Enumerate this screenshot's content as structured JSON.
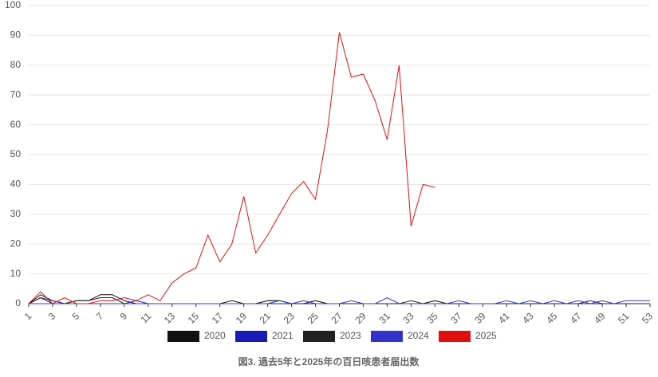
{
  "chart_data": {
    "type": "line",
    "title": "図3. 過去5年と2025年の百日咳患者届出数",
    "x": [
      1,
      2,
      3,
      4,
      5,
      6,
      7,
      8,
      9,
      10,
      11,
      12,
      13,
      14,
      15,
      16,
      17,
      18,
      19,
      20,
      21,
      22,
      23,
      24,
      25,
      26,
      27,
      28,
      29,
      30,
      31,
      32,
      33,
      34,
      35,
      36,
      37,
      38,
      39,
      40,
      41,
      42,
      43,
      44,
      45,
      46,
      47,
      48,
      49,
      50,
      51,
      52,
      53
    ],
    "xlim": [
      1,
      53
    ],
    "xticks": [
      1,
      3,
      5,
      7,
      9,
      11,
      13,
      15,
      17,
      19,
      21,
      23,
      25,
      27,
      29,
      31,
      33,
      35,
      37,
      39,
      41,
      43,
      45,
      47,
      49,
      51,
      53
    ],
    "ylim": [
      0,
      100
    ],
    "yticks": [
      0,
      10,
      20,
      30,
      40,
      50,
      60,
      70,
      80,
      90,
      100
    ],
    "grid": true,
    "legend": "bottom",
    "series": [
      {
        "name": "2020",
        "color": "#111111",
        "values": [
          0,
          3,
          1,
          0,
          1,
          1,
          3,
          3,
          1,
          0,
          0,
          0,
          0,
          0,
          0,
          0,
          0,
          1,
          0,
          0,
          1,
          1,
          0,
          0,
          1,
          0,
          0,
          0,
          0,
          0,
          0,
          0,
          0,
          0,
          1,
          0,
          0,
          0,
          0,
          0,
          0,
          0,
          0,
          0,
          0,
          0,
          0,
          0,
          0,
          0,
          0,
          0,
          0
        ]
      },
      {
        "name": "2021",
        "color": "#1a1ab8",
        "values": [
          0,
          2,
          1,
          0,
          0,
          0,
          0,
          0,
          0,
          1,
          0,
          0,
          0,
          0,
          0,
          0,
          0,
          0,
          0,
          0,
          0,
          0,
          0,
          0,
          0,
          0,
          0,
          0,
          0,
          0,
          0,
          0,
          0,
          0,
          0,
          0,
          0,
          0,
          0,
          0,
          0,
          0,
          0,
          0,
          0,
          0,
          0,
          0,
          0,
          0,
          0,
          0,
          0
        ]
      },
      {
        "name": "2023",
        "color": "#222222",
        "values": [
          0,
          2,
          0,
          0,
          1,
          1,
          2,
          2,
          0,
          0,
          0,
          0,
          0,
          0,
          0,
          0,
          0,
          0,
          0,
          0,
          1,
          1,
          0,
          0,
          1,
          0,
          0,
          0,
          0,
          0,
          0,
          0,
          1,
          0,
          1,
          0,
          0,
          0,
          0,
          0,
          0,
          0,
          0,
          0,
          0,
          0,
          0,
          1,
          0,
          0,
          0,
          0,
          0
        ]
      },
      {
        "name": "2024",
        "color": "#3333cc",
        "values": [
          0,
          0,
          0,
          0,
          0,
          0,
          0,
          0,
          0,
          0,
          0,
          0,
          0,
          0,
          0,
          0,
          0,
          0,
          0,
          0,
          0,
          1,
          0,
          1,
          0,
          0,
          0,
          1,
          0,
          0,
          2,
          0,
          0,
          0,
          0,
          0,
          1,
          0,
          0,
          0,
          1,
          0,
          1,
          0,
          1,
          0,
          1,
          0,
          1,
          0,
          1,
          1,
          1
        ]
      },
      {
        "name": "2025",
        "color": "#e01010",
        "values": [
          0,
          4,
          0,
          2,
          0,
          0,
          1,
          1,
          2,
          1,
          3,
          1,
          7,
          10,
          12,
          23,
          14,
          20,
          36,
          17,
          23,
          30,
          37,
          41,
          35,
          58,
          91,
          76,
          77,
          68,
          55,
          80,
          26,
          40,
          39,
          null,
          null,
          null,
          null,
          null,
          null,
          null,
          null,
          null,
          null,
          null,
          null,
          null,
          null,
          null,
          null,
          null,
          null
        ]
      }
    ]
  }
}
